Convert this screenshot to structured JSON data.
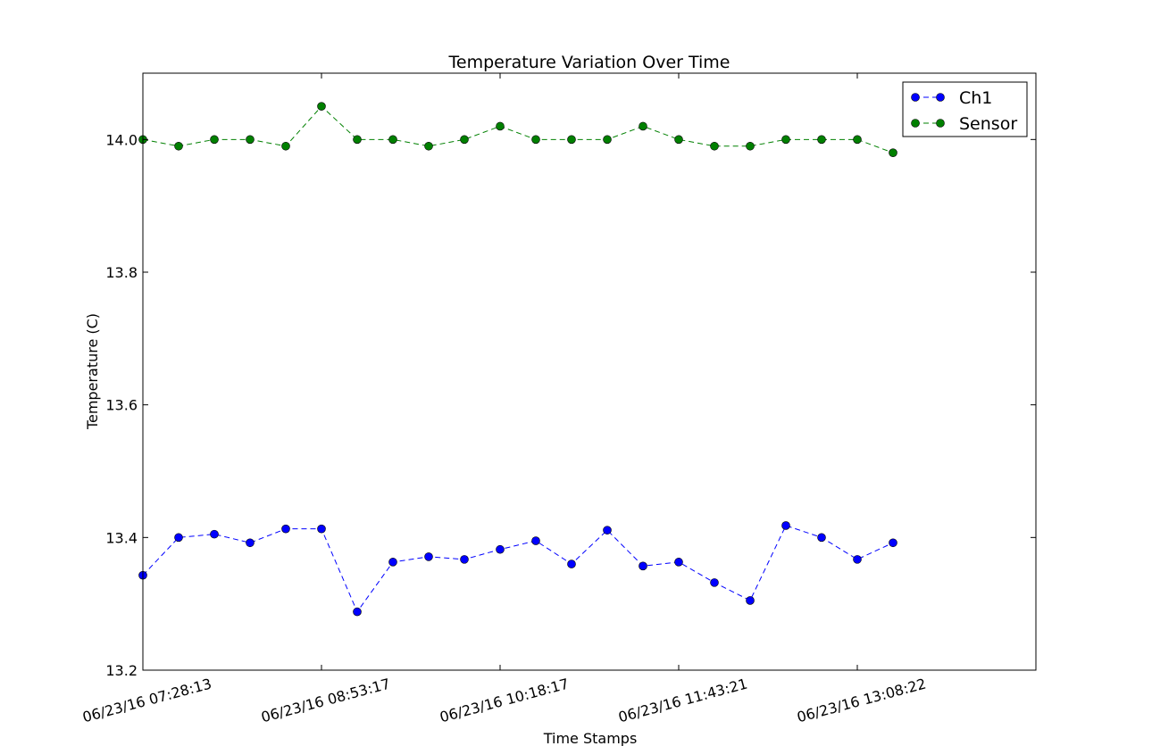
{
  "chart_data": {
    "type": "line",
    "title": "Temperature Variation Over Time",
    "xlabel": "Time Stamps",
    "ylabel": "Temperature (C)",
    "ylim": [
      13.2,
      14.1
    ],
    "yticks": [
      13.2,
      13.4,
      13.6,
      13.8,
      14.0
    ],
    "ytick_labels": [
      "13.2",
      "13.4",
      "13.6",
      "13.8",
      "14.0"
    ],
    "xtick_labels": [
      "06/23/16 07:28:13",
      "06/23/16 08:53:17",
      "06/23/16 10:18:17",
      "06/23/16 11:43:21",
      "06/23/16 13:08:22"
    ],
    "legend_position": "top-right",
    "grid": false,
    "series": [
      {
        "name": "Ch1",
        "color": "#0000ff",
        "values": [
          13.343,
          13.4,
          13.405,
          13.392,
          13.413,
          13.413,
          13.288,
          13.363,
          13.371,
          13.367,
          13.382,
          13.395,
          13.36,
          13.411,
          13.357,
          13.363,
          13.332,
          13.305,
          13.418,
          13.4,
          13.367,
          13.392
        ]
      },
      {
        "name": "Sensor",
        "color": "#008000",
        "values": [
          14.0,
          13.99,
          14.0,
          14.0,
          13.99,
          14.05,
          14.0,
          14.0,
          13.99,
          14.0,
          14.02,
          14.0,
          14.0,
          14.0,
          14.02,
          14.0,
          13.99,
          13.99,
          14.0,
          14.0,
          14.0,
          13.98
        ]
      }
    ]
  }
}
